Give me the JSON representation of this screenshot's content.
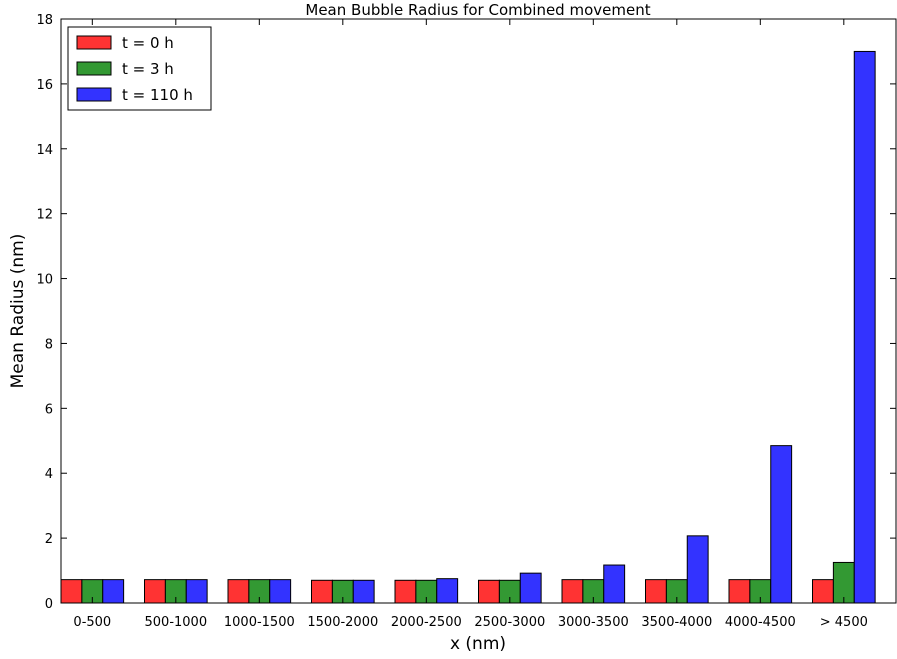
{
  "chart_data": {
    "type": "bar",
    "title": "Mean Bubble Radius for Combined movement",
    "xlabel": "x (nm)",
    "ylabel": "Mean Radius (nm)",
    "ylim": [
      0,
      18
    ],
    "yticks": [
      0,
      2,
      4,
      6,
      8,
      10,
      12,
      14,
      16,
      18
    ],
    "grid": false,
    "legend_position": "top-left",
    "categories": [
      "0-500",
      "500-1000",
      "1000-1500",
      "1500-2000",
      "2000-2500",
      "2500-3000",
      "3000-3500",
      "3500-4000",
      "4000-4500",
      "> 4500"
    ],
    "series": [
      {
        "name": "t = 0 h",
        "color": "#ff3333",
        "values": [
          0.72,
          0.72,
          0.72,
          0.7,
          0.7,
          0.7,
          0.72,
          0.72,
          0.72,
          0.72
        ]
      },
      {
        "name": "t = 3 h",
        "color": "#339933",
        "values": [
          0.72,
          0.72,
          0.72,
          0.7,
          0.7,
          0.7,
          0.72,
          0.72,
          0.72,
          1.25
        ]
      },
      {
        "name": "t = 110 h",
        "color": "#3333ff",
        "values": [
          0.72,
          0.72,
          0.72,
          0.7,
          0.75,
          0.92,
          1.17,
          2.07,
          4.85,
          17.0
        ]
      }
    ]
  }
}
